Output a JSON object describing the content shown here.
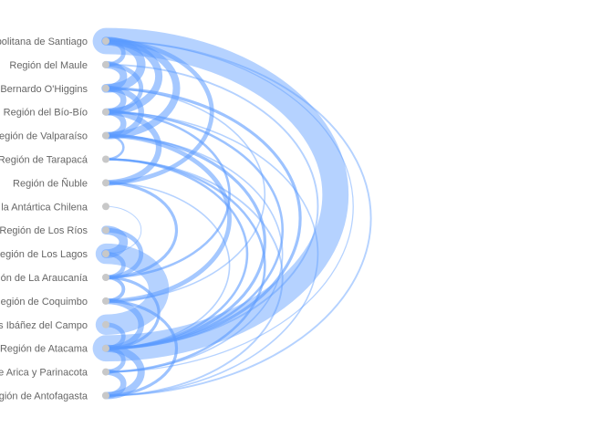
{
  "chart_data": {
    "type": "arc-diagram",
    "nodes": [
      "Región Metropolitana de Santiago",
      "Región del Maule",
      "Región del Libertador General Bernardo O'Higgins",
      "Región del Bío-Bío",
      "Región de Valparaíso",
      "Región de Tarapacá",
      "Región de Ñuble",
      "Región de Magallanes y de la Antártica Chilena",
      "Región de Los Ríos",
      "Región de Los Lagos",
      "Región de La Araucanía",
      "Región de Coquimbo",
      "Región de Aysén del General Carlos Ibáñez del Campo",
      "Región de Atacama",
      "Región de Arica y Parinacota",
      "Región de Antofagasta"
    ],
    "links": [
      {
        "source": 0,
        "target": 13,
        "value": 9
      },
      {
        "source": 0,
        "target": 2,
        "value": 3
      },
      {
        "source": 0,
        "target": 3,
        "value": 2.5
      },
      {
        "source": 0,
        "target": 4,
        "value": 2.5
      },
      {
        "source": 0,
        "target": 1,
        "value": 1.5
      },
      {
        "source": 0,
        "target": 6,
        "value": 1.5
      },
      {
        "source": 0,
        "target": 15,
        "value": 0.6
      },
      {
        "source": 0,
        "target": 14,
        "value": 0.4
      },
      {
        "source": 1,
        "target": 2,
        "value": 2.5
      },
      {
        "source": 1,
        "target": 3,
        "value": 1.5
      },
      {
        "source": 1,
        "target": 13,
        "value": 0.6
      },
      {
        "source": 2,
        "target": 3,
        "value": 2
      },
      {
        "source": 2,
        "target": 4,
        "value": 2
      },
      {
        "source": 2,
        "target": 13,
        "value": 1
      },
      {
        "source": 2,
        "target": 11,
        "value": 0.5
      },
      {
        "source": 3,
        "target": 6,
        "value": 2
      },
      {
        "source": 3,
        "target": 4,
        "value": 2
      },
      {
        "source": 3,
        "target": 10,
        "value": 0.8
      },
      {
        "source": 3,
        "target": 13,
        "value": 0.8
      },
      {
        "source": 3,
        "target": 15,
        "value": 0.5
      },
      {
        "source": 4,
        "target": 11,
        "value": 1.5
      },
      {
        "source": 4,
        "target": 13,
        "value": 1
      },
      {
        "source": 4,
        "target": 5,
        "value": 0.8
      },
      {
        "source": 4,
        "target": 14,
        "value": 0.5
      },
      {
        "source": 5,
        "target": 13,
        "value": 0.8
      },
      {
        "source": 5,
        "target": 14,
        "value": 0.8
      },
      {
        "source": 5,
        "target": 15,
        "value": 0.6
      },
      {
        "source": 6,
        "target": 10,
        "value": 1
      },
      {
        "source": 6,
        "target": 13,
        "value": 0.5
      },
      {
        "source": 7,
        "target": 9,
        "value": 0.3
      },
      {
        "source": 8,
        "target": 9,
        "value": 3
      },
      {
        "source": 8,
        "target": 10,
        "value": 1.5
      },
      {
        "source": 9,
        "target": 12,
        "value": 7
      },
      {
        "source": 9,
        "target": 10,
        "value": 1.5
      },
      {
        "source": 10,
        "target": 11,
        "value": 1.2
      },
      {
        "source": 10,
        "target": 13,
        "value": 1
      },
      {
        "source": 11,
        "target": 13,
        "value": 2
      },
      {
        "source": 11,
        "target": 15,
        "value": 1
      },
      {
        "source": 12,
        "target": 13,
        "value": 1.5
      },
      {
        "source": 13,
        "target": 14,
        "value": 1.5
      },
      {
        "source": 13,
        "target": 15,
        "value": 2.5
      },
      {
        "source": 14,
        "target": 15,
        "value": 2
      }
    ],
    "node_color": "#c8c8c8",
    "link_color": "#5b9bff",
    "label_color": "#666666",
    "grid": false,
    "legend": "none"
  }
}
